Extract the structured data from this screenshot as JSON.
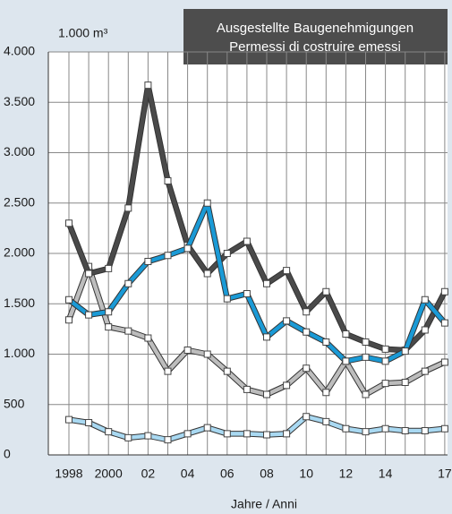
{
  "chart_data": {
    "type": "line",
    "title": "Ausgestellte Baugenehmigungen",
    "subtitle": "Permessi di costruire emessi",
    "y_label": "1.000 m³",
    "x_label": "Jahre / Anni",
    "categories": [
      "1998",
      null,
      "2000",
      null,
      "02",
      null,
      "04",
      null,
      "06",
      null,
      "08",
      null,
      "10",
      null,
      "12",
      null,
      "14",
      null,
      null,
      "17"
    ],
    "series": [
      {
        "color": "#bdbdbd",
        "values": [
          1340,
          1870,
          1270,
          1230,
          1160,
          830,
          1040,
          1000,
          830,
          650,
          600,
          690,
          860,
          620,
          930,
          600,
          710,
          720,
          830,
          920
        ]
      },
      {
        "color": "#a9d9f2",
        "values": [
          350,
          320,
          230,
          170,
          190,
          150,
          210,
          270,
          210,
          210,
          200,
          210,
          380,
          330,
          260,
          230,
          260,
          240,
          240,
          260
        ]
      },
      {
        "color": "#4a4a4a",
        "values": [
          2300,
          1800,
          1850,
          2450,
          3670,
          2720,
          2080,
          1800,
          2000,
          2120,
          1700,
          1830,
          1420,
          1620,
          1200,
          1120,
          1050,
          1040,
          1240,
          1620
        ]
      },
      {
        "color": "#1a9ad6",
        "values": [
          1540,
          1390,
          1420,
          1700,
          1920,
          1980,
          2050,
          2500,
          1550,
          1600,
          1170,
          1330,
          1220,
          1120,
          930,
          970,
          930,
          1030,
          1540,
          1310
        ]
      }
    ],
    "ylim": [
      0,
      4000
    ],
    "yticks": [
      0,
      500,
      {
        "value": 1000,
        "label": "1.000"
      },
      {
        "value": 1500,
        "label": "1.500"
      },
      {
        "value": 2000,
        "label": "2.000"
      },
      {
        "value": 2500,
        "label": "2.500"
      },
      {
        "value": 3000,
        "label": "3.000"
      },
      {
        "value": 3500,
        "label": "3.500"
      },
      {
        "value": 4000,
        "label": "4.000"
      }
    ],
    "grid": true
  }
}
